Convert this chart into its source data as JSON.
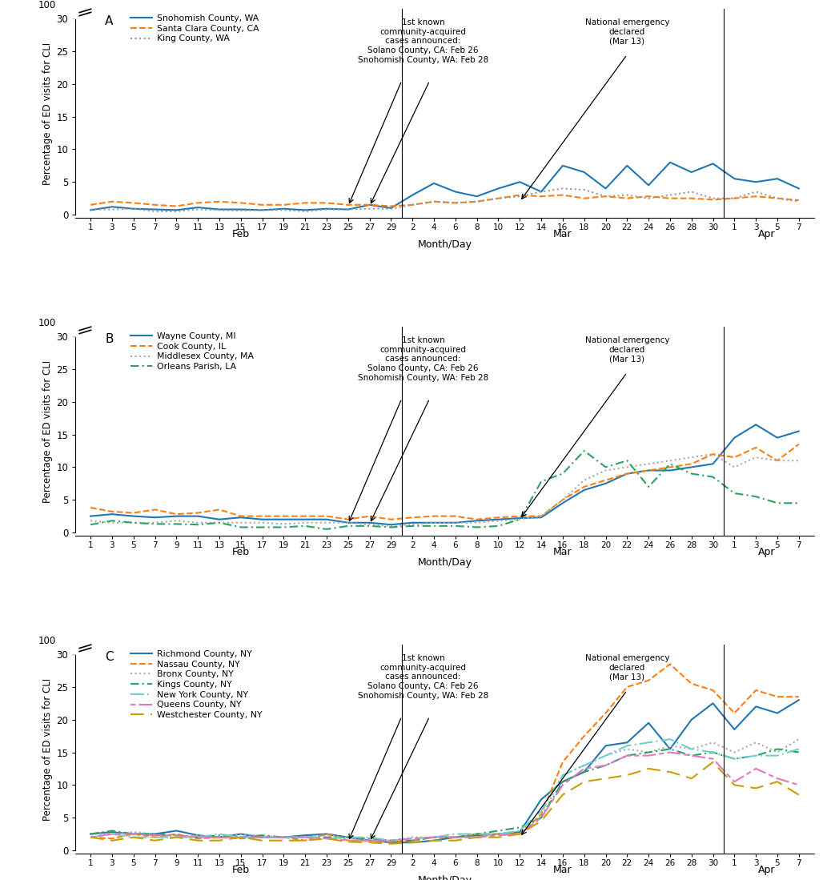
{
  "x_labels": [
    "1",
    "3",
    "5",
    "7",
    "9",
    "11",
    "13",
    "15",
    "17",
    "19",
    "21",
    "23",
    "25",
    "27",
    "29",
    "2",
    "4",
    "6",
    "8",
    "10",
    "12",
    "14",
    "16",
    "18",
    "20",
    "22",
    "24",
    "26",
    "28",
    "30",
    "1",
    "3",
    "5",
    "7"
  ],
  "annotation1": "1st known\ncommunity-acquired\ncases announced:\nSolano County, CA: Feb 26\nSnohomish County, WA: Feb 28",
  "annotation2": "National emergency\ndeclared\n(Mar 13)",
  "arrow1a_idx": 12,
  "arrow1b_idx": 13,
  "arrow2_idx": 20,
  "feb_sep": 14.5,
  "apr_sep": 29.5,
  "ylabel": "Percentage of ED visits for CLI",
  "xlabel": "Month/Day",
  "ylim_display": 8.5,
  "yticks": [
    0,
    5,
    10,
    15,
    20,
    25,
    30
  ],
  "panel_A": {
    "label": "A",
    "series_names": [
      "Snohomish County, WA",
      "Santa Clara County, CA",
      "King County, WA"
    ],
    "colors": [
      "#1f77b4",
      "#ff7f0e",
      "#999999"
    ],
    "linestyles": [
      "solid",
      "dashed",
      "dotted"
    ],
    "dash_patterns": [
      null,
      null,
      null
    ],
    "linewidths": [
      1.5,
      1.5,
      1.5
    ],
    "values": [
      [
        0.7,
        1.2,
        0.9,
        0.8,
        0.7,
        1.1,
        0.8,
        0.8,
        0.7,
        0.9,
        0.7,
        0.9,
        0.8,
        1.5,
        1.0,
        3.0,
        4.8,
        3.5,
        2.8,
        4.0,
        5.0,
        3.5,
        7.5,
        6.5,
        4.0,
        7.5,
        4.5,
        8.0,
        6.5,
        7.8,
        5.5,
        5.0,
        5.5,
        4.0
      ],
      [
        1.5,
        2.0,
        1.8,
        1.5,
        1.3,
        1.8,
        2.0,
        1.8,
        1.5,
        1.5,
        1.8,
        1.8,
        1.5,
        1.5,
        1.3,
        1.5,
        2.0,
        1.8,
        2.0,
        2.5,
        3.0,
        2.8,
        3.0,
        2.5,
        2.8,
        2.5,
        2.8,
        2.5,
        2.5,
        2.3,
        2.5,
        2.8,
        2.5,
        2.2
      ],
      [
        0.8,
        0.8,
        0.9,
        0.5,
        0.5,
        0.8,
        0.7,
        0.6,
        0.7,
        0.7,
        0.5,
        0.8,
        0.8,
        0.9,
        0.9,
        1.5,
        2.0,
        1.8,
        2.0,
        2.5,
        2.8,
        3.5,
        4.0,
        3.8,
        2.8,
        3.0,
        2.5,
        3.0,
        3.5,
        2.5,
        2.5,
        3.5,
        2.5,
        2.0
      ]
    ]
  },
  "panel_B": {
    "label": "B",
    "series_names": [
      "Wayne County, MI",
      "Cook County, IL",
      "Middlesex County, MA",
      "Orleans Parish, LA"
    ],
    "colors": [
      "#1f77b4",
      "#ff7f0e",
      "#aaaaaa",
      "#2ca25f"
    ],
    "linestyles": [
      "solid",
      "dashed",
      "dotted",
      "dashed"
    ],
    "dash_patterns": [
      null,
      null,
      null,
      [
        5,
        2,
        1,
        2
      ]
    ],
    "linewidths": [
      1.5,
      1.5,
      1.5,
      1.5
    ],
    "values": [
      [
        2.5,
        2.8,
        2.5,
        2.3,
        2.5,
        2.5,
        2.0,
        2.3,
        2.0,
        2.0,
        2.0,
        2.0,
        1.5,
        1.5,
        1.2,
        1.5,
        1.5,
        1.5,
        1.8,
        2.0,
        2.2,
        2.3,
        4.5,
        6.5,
        7.5,
        9.0,
        9.5,
        9.5,
        10.0,
        10.5,
        14.5,
        16.5,
        14.5,
        15.5
      ],
      [
        3.8,
        3.2,
        3.0,
        3.5,
        2.8,
        3.0,
        3.5,
        2.5,
        2.5,
        2.5,
        2.5,
        2.5,
        2.0,
        2.5,
        2.0,
        2.3,
        2.5,
        2.5,
        2.0,
        2.3,
        2.5,
        2.5,
        5.0,
        7.0,
        8.0,
        9.0,
        9.5,
        10.0,
        10.5,
        12.0,
        11.5,
        13.0,
        11.0,
        13.5
      ],
      [
        1.8,
        1.5,
        1.5,
        1.5,
        1.8,
        1.5,
        1.5,
        1.5,
        1.5,
        1.3,
        1.5,
        1.5,
        1.5,
        1.2,
        1.0,
        1.2,
        1.5,
        1.5,
        1.5,
        1.8,
        2.0,
        2.5,
        5.0,
        8.0,
        9.5,
        10.0,
        10.5,
        11.0,
        11.5,
        12.0,
        10.0,
        11.5,
        11.0,
        11.0
      ],
      [
        1.2,
        1.8,
        1.5,
        1.3,
        1.3,
        1.2,
        1.5,
        0.8,
        0.8,
        0.8,
        1.0,
        0.5,
        1.0,
        1.0,
        0.8,
        1.0,
        1.0,
        1.0,
        0.8,
        1.0,
        2.0,
        7.8,
        9.0,
        12.5,
        10.0,
        11.0,
        7.0,
        10.5,
        9.0,
        8.5,
        6.0,
        5.5,
        4.5,
        4.5
      ]
    ]
  },
  "panel_C": {
    "label": "C",
    "series_names": [
      "Richmond County, NY",
      "Nassau County, NY",
      "Bronx County, NY",
      "Kings County, NY",
      "New York County, NY",
      "Queens County, NY",
      "Westchester County, NY"
    ],
    "colors": [
      "#1f77b4",
      "#ff7f0e",
      "#aaaaaa",
      "#2ca25f",
      "#6ecfcf",
      "#e377c2",
      "#c8a000"
    ],
    "linestyles": [
      "solid",
      "dashed",
      "dotted",
      "dashed",
      "dashed",
      "dashed",
      "dashed"
    ],
    "dash_patterns": [
      null,
      null,
      null,
      [
        5,
        2,
        1,
        2
      ],
      [
        8,
        2,
        1,
        2
      ],
      [
        3,
        2,
        8,
        2
      ],
      [
        8,
        4
      ]
    ],
    "linewidths": [
      1.5,
      1.5,
      1.5,
      1.5,
      1.5,
      1.5,
      1.5
    ],
    "values": [
      [
        2.5,
        2.8,
        2.5,
        2.5,
        3.0,
        2.3,
        2.0,
        2.5,
        2.0,
        2.0,
        2.3,
        2.5,
        2.0,
        1.5,
        1.2,
        1.2,
        1.5,
        2.0,
        2.3,
        2.5,
        2.8,
        7.8,
        10.5,
        12.0,
        16.0,
        16.5,
        19.5,
        15.5,
        20.0,
        22.5,
        18.5,
        22.0,
        21.0,
        23.0
      ],
      [
        2.0,
        1.8,
        2.5,
        2.0,
        2.5,
        1.8,
        2.0,
        1.8,
        2.0,
        2.0,
        1.5,
        2.5,
        1.5,
        1.5,
        1.3,
        1.5,
        2.0,
        2.0,
        2.5,
        2.5,
        2.5,
        5.5,
        13.5,
        17.5,
        21.0,
        25.0,
        26.0,
        28.5,
        25.5,
        24.5,
        21.0,
        24.5,
        23.5,
        23.5
      ],
      [
        2.5,
        2.5,
        2.8,
        2.5,
        2.0,
        2.3,
        2.0,
        2.5,
        2.2,
        2.0,
        2.0,
        2.3,
        2.0,
        1.5,
        1.5,
        2.0,
        2.0,
        2.0,
        2.0,
        2.5,
        3.0,
        5.0,
        11.5,
        13.0,
        14.5,
        15.5,
        15.0,
        16.0,
        15.5,
        16.5,
        15.0,
        16.5,
        15.0,
        17.0
      ],
      [
        2.5,
        3.0,
        2.5,
        2.5,
        2.3,
        2.0,
        2.3,
        2.0,
        2.3,
        2.0,
        2.0,
        2.0,
        2.0,
        1.8,
        1.5,
        1.5,
        2.0,
        2.0,
        2.5,
        3.0,
        3.5,
        5.0,
        10.5,
        12.0,
        13.0,
        14.5,
        15.0,
        15.5,
        14.5,
        15.0,
        14.0,
        14.5,
        15.5,
        15.0
      ],
      [
        2.0,
        2.5,
        2.0,
        2.0,
        2.0,
        2.0,
        2.5,
        2.0,
        2.0,
        2.0,
        2.0,
        1.8,
        2.0,
        2.0,
        1.5,
        1.8,
        2.0,
        2.5,
        2.5,
        2.5,
        3.0,
        6.0,
        11.5,
        13.0,
        14.5,
        16.0,
        16.5,
        17.0,
        15.5,
        15.0,
        14.0,
        14.5,
        14.5,
        15.5
      ],
      [
        2.0,
        2.5,
        2.5,
        2.3,
        2.3,
        2.0,
        2.0,
        2.0,
        2.0,
        2.0,
        2.0,
        1.8,
        1.5,
        1.5,
        1.5,
        1.8,
        2.0,
        2.0,
        2.0,
        2.3,
        2.5,
        5.0,
        10.0,
        12.5,
        13.0,
        14.5,
        14.5,
        15.0,
        14.5,
        14.0,
        10.5,
        12.5,
        11.0,
        10.0
      ],
      [
        2.0,
        1.5,
        2.0,
        1.5,
        2.0,
        1.5,
        1.5,
        2.0,
        1.5,
        1.5,
        1.5,
        1.8,
        1.3,
        1.2,
        1.0,
        1.2,
        1.5,
        1.5,
        2.0,
        2.0,
        2.5,
        4.5,
        8.5,
        10.5,
        11.0,
        11.5,
        12.5,
        12.0,
        11.0,
        13.5,
        10.0,
        9.5,
        10.5,
        8.5
      ]
    ]
  }
}
